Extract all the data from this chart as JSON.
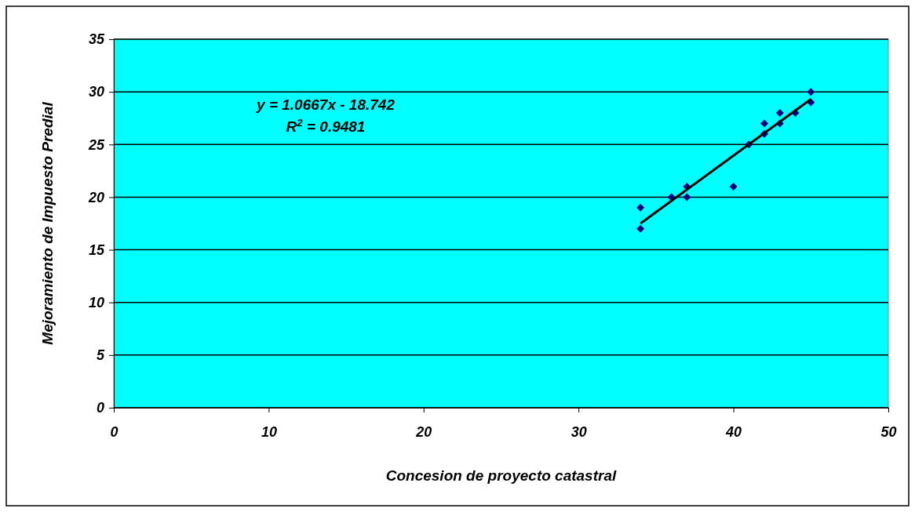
{
  "chart_data": {
    "type": "scatter",
    "xlabel": "Concesion de proyecto catastral",
    "ylabel": "Mejoramiento de Impuesto Predial",
    "xlim": [
      0,
      50
    ],
    "xticks": [
      0,
      10,
      20,
      30,
      40,
      50
    ],
    "ylim": [
      0,
      35
    ],
    "yticks": [
      0,
      5,
      10,
      15,
      20,
      25,
      30,
      35
    ],
    "grid": "y",
    "annotations": [
      "y = 1.0667x - 18.742",
      "R$^{2}$ = 0.9481"
    ],
    "series": [
      {
        "marker": "diamond",
        "color": "#000080",
        "x": [
          34,
          34,
          36,
          37,
          37,
          40,
          41,
          42,
          42,
          43,
          43,
          44,
          45,
          45
        ],
        "values": [
          19,
          17,
          20,
          21,
          20,
          21,
          25,
          27,
          26,
          28,
          27,
          28,
          30,
          29
        ]
      },
      {
        "type": "line",
        "color": "#000000",
        "x": [
          34,
          45
        ],
        "values": [
          17.5,
          29.3
        ]
      }
    ]
  }
}
